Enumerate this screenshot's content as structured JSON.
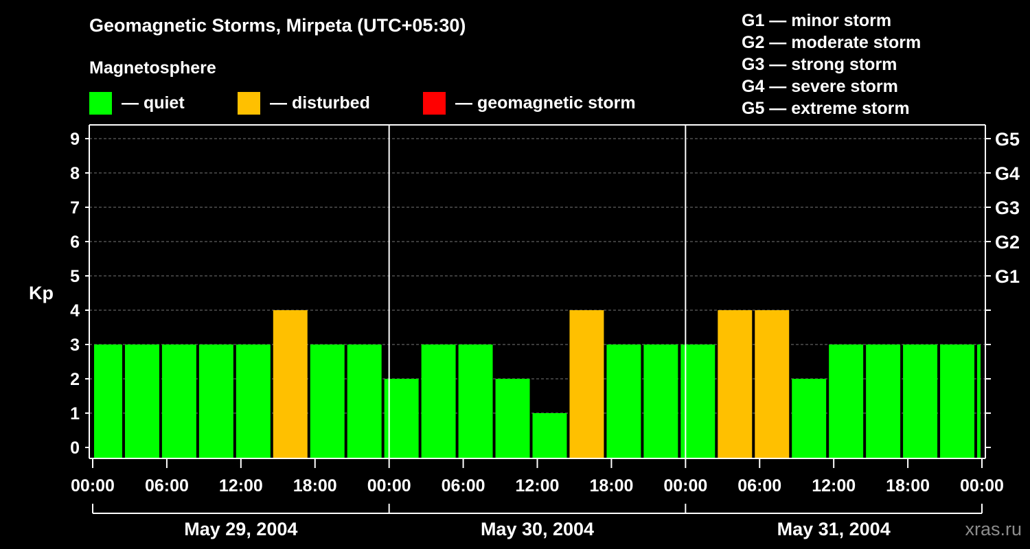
{
  "chart_data": {
    "type": "bar",
    "title": "Geomagnetic Storms, Mirpeta (UTC+05:30)",
    "subtitle": "Magnetosphere",
    "ylabel": "Kp",
    "ylim": [
      0,
      9
    ],
    "yticks": [
      "0",
      "1",
      "2",
      "3",
      "4",
      "5",
      "6",
      "7",
      "8",
      "9"
    ],
    "right_ticks": [
      {
        "kp": 5,
        "label": "G1"
      },
      {
        "kp": 6,
        "label": "G2"
      },
      {
        "kp": 7,
        "label": "G3"
      },
      {
        "kp": 8,
        "label": "G4"
      },
      {
        "kp": 9,
        "label": "G5"
      }
    ],
    "xlim_hours": [
      0,
      72
    ],
    "xtick_labels": [
      "00:00",
      "06:00",
      "12:00",
      "18:00",
      "00:00",
      "06:00",
      "12:00",
      "18:00",
      "00:00",
      "06:00",
      "12:00",
      "18:00",
      "00:00"
    ],
    "days": [
      "May 29, 2004",
      "May 30, 2004",
      "May 31, 2004"
    ],
    "bar_start_hours": [
      -0.5,
      2.5,
      5.5,
      8.5,
      11.5,
      14.5,
      17.5,
      20.5,
      23.5,
      26.5,
      29.5,
      32.5,
      35.5,
      38.5,
      41.5,
      44.5,
      47.5,
      50.5,
      53.5,
      56.5,
      59.5,
      62.5,
      65.5,
      68.5,
      71.5
    ],
    "values": [
      3,
      3,
      3,
      3,
      3,
      4,
      3,
      3,
      2,
      3,
      3,
      2,
      1,
      4,
      3,
      3,
      3,
      4,
      4,
      2,
      3,
      3,
      3,
      3,
      3
    ],
    "grid": true
  },
  "legend": [
    {
      "label": "— quiet",
      "color": "#00ff00"
    },
    {
      "label": "— disturbed",
      "color": "#ffc000"
    },
    {
      "label": "— geomagnetic storm",
      "color": "#ff0000"
    }
  ],
  "storm_scale": [
    "G1 — minor storm",
    "G2 — moderate storm",
    "G3 — strong storm",
    "G4 — severe storm",
    "G5 — extreme storm"
  ],
  "credit": "xras.ru"
}
